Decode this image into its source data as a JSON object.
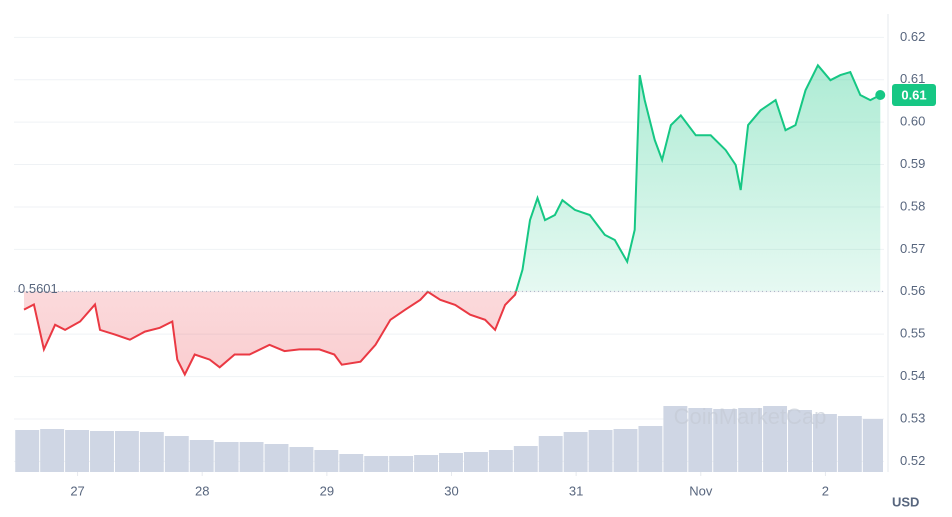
{
  "chart_data": {
    "type": "line",
    "xlim": [
      26.49,
      33.47
    ],
    "ylim": [
      0.5175,
      0.6255
    ],
    "xticks": [
      27,
      28,
      29,
      30,
      31,
      {
        "value": 32,
        "label": "Nov"
      },
      {
        "value": 33,
        "label": "2"
      }
    ],
    "yticks": [
      0.52,
      0.53,
      0.54,
      0.55,
      0.56,
      0.57,
      0.58,
      0.59,
      {
        "value": 0.6,
        "label": "0.60"
      },
      0.61,
      0.62
    ],
    "grid": true,
    "baseline": 0.5601,
    "price_label": "0.61",
    "currency": "USD",
    "watermark": "CoinMarketCap",
    "color_up": "#16c784",
    "color_down": "#ea3943",
    "series": [
      {
        "x": [
          26.57,
          26.65,
          26.73,
          26.82,
          26.9,
          27.02,
          27.14,
          27.18,
          27.3,
          27.42,
          27.54,
          27.66,
          27.76,
          27.8,
          27.86,
          27.94,
          28.06,
          28.14,
          28.26,
          28.38,
          28.54,
          28.66,
          28.78,
          28.94,
          29.06,
          29.12,
          29.27,
          29.39,
          29.51,
          29.63,
          29.75,
          29.81,
          29.91,
          30.03,
          30.15,
          30.27,
          30.35,
          30.43,
          30.51,
          30.57,
          30.63,
          30.69,
          30.75,
          30.83,
          30.89,
          30.99,
          31.11,
          31.23,
          31.31,
          31.41,
          31.47,
          31.51,
          31.55,
          31.63,
          31.69,
          31.76,
          31.84,
          31.96,
          32.08,
          32.2,
          32.28,
          32.32,
          32.38,
          32.48,
          32.6,
          32.68,
          32.76,
          32.84,
          32.94,
          33.04,
          33.12,
          33.2,
          33.28,
          33.36,
          33.44
        ],
        "values": [
          0.5558,
          0.557,
          0.5464,
          0.5522,
          0.551,
          0.553,
          0.557,
          0.551,
          0.5499,
          0.5487,
          0.5506,
          0.5515,
          0.553,
          0.544,
          0.5405,
          0.5452,
          0.544,
          0.5422,
          0.5452,
          0.5452,
          0.5475,
          0.546,
          0.5464,
          0.5464,
          0.5452,
          0.5428,
          0.5435,
          0.5475,
          0.5534,
          0.5558,
          0.5581,
          0.56,
          0.5581,
          0.5569,
          0.5546,
          0.5534,
          0.551,
          0.5569,
          0.5593,
          0.5652,
          0.5769,
          0.5821,
          0.5769,
          0.5781,
          0.5816,
          0.5793,
          0.5781,
          0.5734,
          0.5722,
          0.5671,
          0.5746,
          0.6111,
          0.6052,
          0.5958,
          0.5911,
          0.5993,
          0.6016,
          0.5969,
          0.5969,
          0.5934,
          0.5899,
          0.584,
          0.5993,
          0.6028,
          0.6052,
          0.5981,
          0.5993,
          0.6075,
          0.6134,
          0.6099,
          0.6111,
          0.6118,
          0.6064,
          0.6052,
          0.6064
        ]
      }
    ],
    "volume": {
      "color": "#cfd6e4",
      "x": [
        26.5,
        26.7,
        26.9,
        27.1,
        27.3,
        27.5,
        27.7,
        27.9,
        28.1,
        28.3,
        28.5,
        28.7,
        28.9,
        29.1,
        29.3,
        29.5,
        29.7,
        29.9,
        30.1,
        30.3,
        30.5,
        30.7,
        30.9,
        31.1,
        31.3,
        31.5,
        31.7,
        31.9,
        32.1,
        32.3,
        32.5,
        32.7,
        32.9,
        33.1,
        33.3
      ],
      "values": [
        42,
        43,
        42,
        41,
        41,
        40,
        36,
        32,
        30,
        30,
        28,
        25,
        22,
        18,
        16,
        16,
        17,
        19,
        20,
        22,
        26,
        36,
        40,
        42,
        43,
        46,
        66,
        64,
        63,
        64,
        66,
        62,
        58,
        56,
        53
      ]
    }
  }
}
